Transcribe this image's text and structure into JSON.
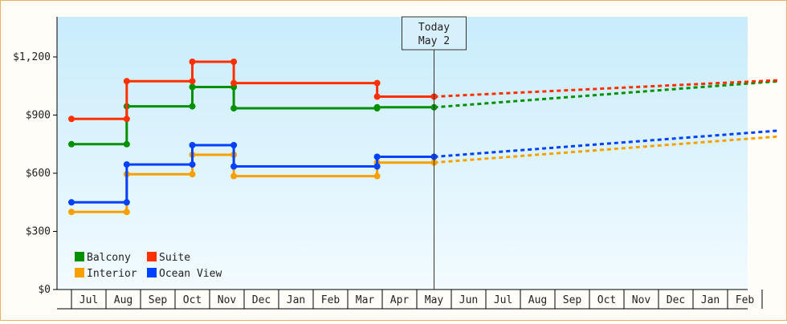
{
  "chart_data": {
    "type": "line",
    "y_ticks": [
      "$0",
      "$300",
      "$600",
      "$900",
      "$1,200"
    ],
    "y_tick_values": [
      0,
      300,
      600,
      900,
      1200
    ],
    "ylim": [
      0,
      1200
    ],
    "x_ticks": [
      "Jul",
      "Aug",
      "Sep",
      "Oct",
      "Nov",
      "Dec",
      "Jan",
      "Feb",
      "Mar",
      "Apr",
      "May",
      "Jun",
      "Jul",
      "Aug",
      "Sep",
      "Oct",
      "Nov",
      "Dec",
      "Jan",
      "Feb"
    ],
    "today": {
      "label": "Today",
      "date": "May 2"
    },
    "legend_placement": "bottom-left",
    "grid": false,
    "series": [
      {
        "name": "Balcony",
        "color": "#009000",
        "history": [
          [
            0,
            750
          ],
          [
            1.6,
            750
          ],
          [
            1.6,
            945
          ],
          [
            3.5,
            945
          ],
          [
            3.5,
            1045
          ],
          [
            4.7,
            1045
          ],
          [
            4.7,
            935
          ],
          [
            8.85,
            935
          ],
          [
            8.85,
            940
          ],
          [
            10.5,
            940
          ]
        ],
        "forecast": [
          [
            10.5,
            940
          ],
          [
            20.5,
            1075
          ]
        ]
      },
      {
        "name": "Suite",
        "color": "#ff3000",
        "history": [
          [
            0,
            880
          ],
          [
            1.6,
            880
          ],
          [
            1.6,
            1075
          ],
          [
            3.5,
            1075
          ],
          [
            3.5,
            1175
          ],
          [
            4.7,
            1175
          ],
          [
            4.7,
            1065
          ],
          [
            8.85,
            1065
          ],
          [
            8.85,
            995
          ],
          [
            10.5,
            995
          ]
        ],
        "forecast": [
          [
            10.5,
            995
          ],
          [
            20.5,
            1080
          ]
        ]
      },
      {
        "name": "Interior",
        "color": "#f8a000",
        "history": [
          [
            0,
            400
          ],
          [
            1.6,
            400
          ],
          [
            1.6,
            595
          ],
          [
            3.5,
            595
          ],
          [
            3.5,
            695
          ],
          [
            4.7,
            695
          ],
          [
            4.7,
            585
          ],
          [
            8.85,
            585
          ],
          [
            8.85,
            655
          ],
          [
            10.5,
            655
          ]
        ],
        "forecast": [
          [
            10.5,
            655
          ],
          [
            20.5,
            790
          ]
        ]
      },
      {
        "name": "Ocean View",
        "color": "#0040ff",
        "history": [
          [
            0,
            450
          ],
          [
            1.6,
            450
          ],
          [
            1.6,
            645
          ],
          [
            3.5,
            645
          ],
          [
            3.5,
            745
          ],
          [
            4.7,
            745
          ],
          [
            4.7,
            635
          ],
          [
            8.85,
            635
          ],
          [
            8.85,
            685
          ],
          [
            10.5,
            685
          ]
        ],
        "forecast": [
          [
            10.5,
            685
          ],
          [
            20.5,
            820
          ]
        ]
      }
    ]
  }
}
